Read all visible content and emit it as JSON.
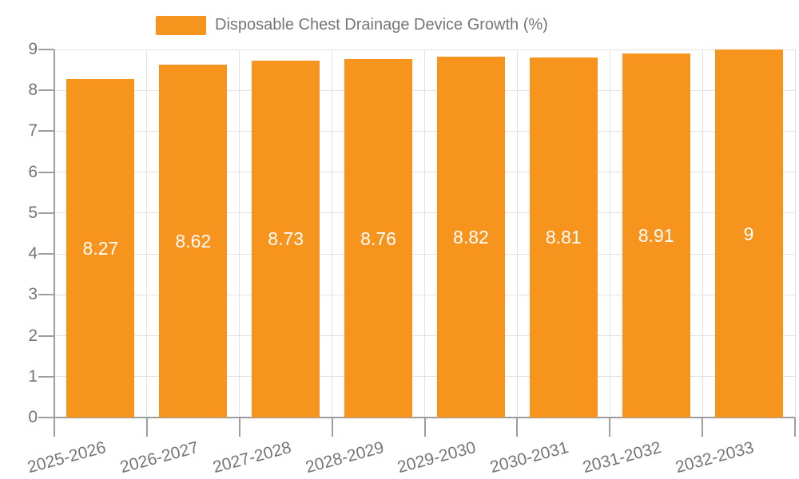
{
  "legend": {
    "label": "Disposable Chest Drainage Device Growth (%)"
  },
  "chart_data": {
    "type": "bar",
    "title": "Disposable Chest Drainage Device Growth (%)",
    "categories": [
      "2025-2026",
      "2026-2027",
      "2027-2028",
      "2028-2029",
      "2029-2030",
      "2030-2031",
      "2031-2032",
      "2032-2033"
    ],
    "values": [
      8.27,
      8.62,
      8.73,
      8.76,
      8.82,
      8.81,
      8.91,
      9
    ],
    "value_labels": [
      "8.27",
      "8.62",
      "8.73",
      "8.76",
      "8.82",
      "8.81",
      "8.91",
      "9"
    ],
    "series_name": "Disposable Chest Drainage Device Growth (%)",
    "xlabel": "",
    "ylabel": "",
    "ylim": [
      0,
      9
    ],
    "yticks": [
      0,
      1,
      2,
      3,
      4,
      5,
      6,
      7,
      8,
      9
    ],
    "grid": true,
    "legend_position": "top",
    "data_label_position": "inside-center",
    "xtick_rotation_deg": -15
  },
  "colors": {
    "bar": "#F7941E",
    "axis": "#9E9E9E",
    "gridline": "#E2E2E2",
    "tick": "#9E9E9E",
    "text": "#757575",
    "data_label": "#FFFFFF",
    "background": "#FFFFFF"
  }
}
